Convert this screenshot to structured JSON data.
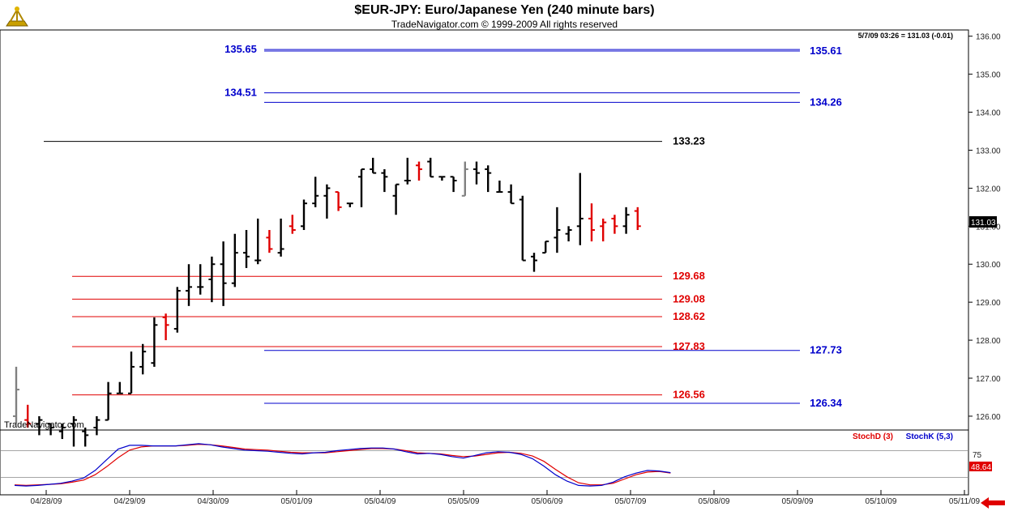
{
  "header": {
    "title": "$EUR-JPY:  Euro/Japanese Yen  (240 minute bars)",
    "copyright": "TradeNavigator.com © 1999-2009 All rights reserved",
    "status": "5/7/09 03:26 = 131.03 (-0.01)",
    "watermark": "TradeNavigator.com"
  },
  "colors": {
    "up_bar": "#000000",
    "down_bar": "#e00000",
    "neutral_bar": "#808080",
    "blue_level": "#0000cc",
    "red_level": "#e00000",
    "black_level": "#000000",
    "stoch_d": "#e00000",
    "stoch_k": "#0000cc"
  },
  "chart_data": {
    "type": "ohlc",
    "title": "$EUR-JPY:  Euro/Japanese Yen  (240 minute bars)",
    "ylim": [
      125.7,
      136.1
    ],
    "y_ticks": [
      126,
      127,
      128,
      129,
      130,
      131,
      132,
      133,
      134,
      135,
      136
    ],
    "y_tick_labels": [
      "126.00",
      "127.00",
      "128.00",
      "129.00",
      "130.00",
      "131.00",
      "132.00",
      "133.00",
      "134.00",
      "135.00",
      "136.00"
    ],
    "x_labels": [
      "04/28/09",
      "04/29/09",
      "04/30/09",
      "05/01/09",
      "05/04/09",
      "05/05/09",
      "05/06/09",
      "05/07/09",
      "05/08/09",
      "05/09/09",
      "05/10/09",
      "05/11/09"
    ],
    "last_price": "131.03",
    "bars": [
      {
        "o": 126.0,
        "h": 127.3,
        "l": 125.8,
        "c": 126.7,
        "t": "gray"
      },
      {
        "o": 125.9,
        "h": 126.3,
        "l": 125.7,
        "c": 125.8,
        "t": "down"
      },
      {
        "o": 125.8,
        "h": 126.0,
        "l": 125.5,
        "c": 125.9,
        "t": "up"
      },
      {
        "o": 125.8,
        "h": 125.8,
        "l": 125.5,
        "c": 125.7,
        "t": "up"
      },
      {
        "o": 125.6,
        "h": 125.8,
        "l": 125.4,
        "c": 125.7,
        "t": "up"
      },
      {
        "o": 125.8,
        "h": 126.0,
        "l": 125.2,
        "c": 125.9,
        "t": "up"
      },
      {
        "o": 125.6,
        "h": 125.7,
        "l": 125.2,
        "c": 125.5,
        "t": "up"
      },
      {
        "o": 125.7,
        "h": 126.0,
        "l": 125.5,
        "c": 125.9,
        "t": "up"
      },
      {
        "o": 125.9,
        "h": 126.9,
        "l": 125.9,
        "c": 126.6,
        "t": "up"
      },
      {
        "o": 126.6,
        "h": 126.9,
        "l": 126.6,
        "c": 126.6,
        "t": "up"
      },
      {
        "o": 126.6,
        "h": 127.7,
        "l": 126.6,
        "c": 127.3,
        "t": "up"
      },
      {
        "o": 127.3,
        "h": 127.9,
        "l": 127.1,
        "c": 127.7,
        "t": "up"
      },
      {
        "o": 127.4,
        "h": 128.6,
        "l": 127.3,
        "c": 128.4,
        "t": "up"
      },
      {
        "o": 128.6,
        "h": 128.7,
        "l": 128.0,
        "c": 128.4,
        "t": "down"
      },
      {
        "o": 128.3,
        "h": 129.4,
        "l": 128.2,
        "c": 129.3,
        "t": "up"
      },
      {
        "o": 129.3,
        "h": 130.0,
        "l": 128.9,
        "c": 129.4,
        "t": "up"
      },
      {
        "o": 129.4,
        "h": 130.0,
        "l": 129.2,
        "c": 129.4,
        "t": "up"
      },
      {
        "o": 129.6,
        "h": 130.2,
        "l": 129.0,
        "c": 130.0,
        "t": "up"
      },
      {
        "o": 130.0,
        "h": 130.6,
        "l": 128.9,
        "c": 129.5,
        "t": "up"
      },
      {
        "o": 129.5,
        "h": 130.8,
        "l": 129.4,
        "c": 130.3,
        "t": "up"
      },
      {
        "o": 130.3,
        "h": 130.9,
        "l": 129.9,
        "c": 130.2,
        "t": "up"
      },
      {
        "o": 130.1,
        "h": 131.2,
        "l": 130.0,
        "c": 130.1,
        "t": "up"
      },
      {
        "o": 130.7,
        "h": 130.9,
        "l": 130.3,
        "c": 130.4,
        "t": "down"
      },
      {
        "o": 130.3,
        "h": 131.2,
        "l": 130.2,
        "c": 130.4,
        "t": "up"
      },
      {
        "o": 131.0,
        "h": 131.3,
        "l": 130.8,
        "c": 130.9,
        "t": "down"
      },
      {
        "o": 131.0,
        "h": 131.7,
        "l": 130.9,
        "c": 131.6,
        "t": "up"
      },
      {
        "o": 131.6,
        "h": 132.3,
        "l": 131.5,
        "c": 131.8,
        "t": "up"
      },
      {
        "o": 131.8,
        "h": 132.1,
        "l": 131.2,
        "c": 132.0,
        "t": "up"
      },
      {
        "o": 131.9,
        "h": 131.9,
        "l": 131.4,
        "c": 131.5,
        "t": "down"
      },
      {
        "o": 131.6,
        "h": 131.6,
        "l": 131.5,
        "c": 131.6,
        "t": "up"
      },
      {
        "o": 132.3,
        "h": 132.5,
        "l": 131.5,
        "c": 132.5,
        "t": "up"
      },
      {
        "o": 132.5,
        "h": 132.8,
        "l": 132.4,
        "c": 132.4,
        "t": "up"
      },
      {
        "o": 132.4,
        "h": 132.5,
        "l": 131.9,
        "c": 132.3,
        "t": "up"
      },
      {
        "o": 131.8,
        "h": 132.1,
        "l": 131.3,
        "c": 132.1,
        "t": "up"
      },
      {
        "o": 132.2,
        "h": 132.8,
        "l": 132.1,
        "c": 132.2,
        "t": "up"
      },
      {
        "o": 132.6,
        "h": 132.7,
        "l": 132.2,
        "c": 132.5,
        "t": "down"
      },
      {
        "o": 132.7,
        "h": 132.8,
        "l": 132.3,
        "c": 132.3,
        "t": "up"
      },
      {
        "o": 132.3,
        "h": 132.3,
        "l": 132.2,
        "c": 132.3,
        "t": "up"
      },
      {
        "o": 132.3,
        "h": 132.3,
        "l": 131.9,
        "c": 132.2,
        "t": "up"
      },
      {
        "o": 131.8,
        "h": 132.7,
        "l": 131.8,
        "c": 132.5,
        "t": "gray"
      },
      {
        "o": 132.5,
        "h": 132.7,
        "l": 132.1,
        "c": 132.4,
        "t": "up"
      },
      {
        "o": 132.5,
        "h": 132.6,
        "l": 131.9,
        "c": 132.4,
        "t": "up"
      },
      {
        "o": 131.9,
        "h": 132.2,
        "l": 131.9,
        "c": 131.9,
        "t": "up"
      },
      {
        "o": 131.9,
        "h": 132.1,
        "l": 131.6,
        "c": 131.6,
        "t": "up"
      },
      {
        "o": 131.7,
        "h": 131.8,
        "l": 130.1,
        "c": 130.1,
        "t": "up"
      },
      {
        "o": 130.2,
        "h": 130.3,
        "l": 129.8,
        "c": 130.1,
        "t": "up"
      },
      {
        "o": 130.3,
        "h": 130.6,
        "l": 130.3,
        "c": 130.6,
        "t": "up"
      },
      {
        "o": 130.7,
        "h": 131.5,
        "l": 130.3,
        "c": 130.9,
        "t": "up"
      },
      {
        "o": 130.8,
        "h": 131.0,
        "l": 130.6,
        "c": 130.9,
        "t": "up"
      },
      {
        "o": 131.0,
        "h": 132.4,
        "l": 130.5,
        "c": 131.2,
        "t": "up"
      },
      {
        "o": 131.2,
        "h": 131.6,
        "l": 130.6,
        "c": 130.9,
        "t": "down"
      },
      {
        "o": 131.0,
        "h": 131.2,
        "l": 130.6,
        "c": 131.1,
        "t": "down"
      },
      {
        "o": 131.2,
        "h": 131.3,
        "l": 130.8,
        "c": 131.0,
        "t": "down"
      },
      {
        "o": 131.0,
        "h": 131.5,
        "l": 130.8,
        "c": 131.3,
        "t": "up"
      },
      {
        "o": 131.4,
        "h": 131.5,
        "l": 130.9,
        "c": 131.0,
        "t": "down"
      }
    ],
    "levels": [
      {
        "value": 135.61,
        "label": "135.61",
        "color": "blue",
        "start": "05/01/09"
      },
      {
        "value": 135.65,
        "label": "135.65",
        "color": "blue",
        "start": "05/01/09",
        "label_side": "left"
      },
      {
        "value": 134.26,
        "label": "134.26",
        "color": "blue",
        "start": "05/01/09"
      },
      {
        "value": 134.51,
        "label": "134.51",
        "color": "blue",
        "start": "05/01/09",
        "label_side": "left"
      },
      {
        "value": 133.23,
        "label": "133.23",
        "color": "black",
        "start": "04/28/09"
      },
      {
        "value": 129.68,
        "label": "129.68",
        "color": "red",
        "start": "04/28/09"
      },
      {
        "value": 129.08,
        "label": "129.08",
        "color": "red",
        "start": "04/28/09"
      },
      {
        "value": 128.62,
        "label": "128.62",
        "color": "red",
        "start": "04/28/09"
      },
      {
        "value": 127.83,
        "label": "127.83",
        "color": "red",
        "start": "04/28/09"
      },
      {
        "value": 127.73,
        "label": "127.73",
        "color": "blue",
        "start": "05/01/09"
      },
      {
        "value": 126.56,
        "label": "126.56",
        "color": "red",
        "start": "04/28/09"
      },
      {
        "value": 126.34,
        "label": "126.34",
        "color": "blue",
        "start": "05/01/09"
      }
    ],
    "indicator": {
      "stoch_d_label": "StochD (3)",
      "stoch_k_label": "StochK (5,3)",
      "level_label": "75",
      "value_label": "48.64",
      "stoch_k": [
        10,
        9,
        10,
        12,
        14,
        18,
        24,
        38,
        58,
        78,
        85,
        85,
        84,
        84,
        84,
        86,
        88,
        86,
        82,
        79,
        76,
        75,
        74,
        72,
        70,
        69,
        71,
        72,
        75,
        77,
        79,
        80,
        80,
        78,
        73,
        69,
        70,
        68,
        64,
        61,
        66,
        71,
        73,
        72,
        68,
        60,
        46,
        30,
        18,
        10,
        9,
        10,
        16,
        26,
        33,
        38,
        37,
        34
      ],
      "stoch_d": [
        11,
        10,
        11,
        12,
        13,
        16,
        20,
        30,
        45,
        62,
        76,
        82,
        84,
        84,
        84,
        85,
        87,
        86,
        84,
        81,
        78,
        77,
        76,
        74,
        72,
        71,
        71,
        71,
        73,
        75,
        77,
        79,
        79,
        78,
        75,
        71,
        70,
        69,
        66,
        64,
        65,
        68,
        71,
        72,
        70,
        65,
        55,
        40,
        26,
        15,
        11,
        11,
        14,
        22,
        30,
        35,
        36,
        33
      ]
    }
  }
}
